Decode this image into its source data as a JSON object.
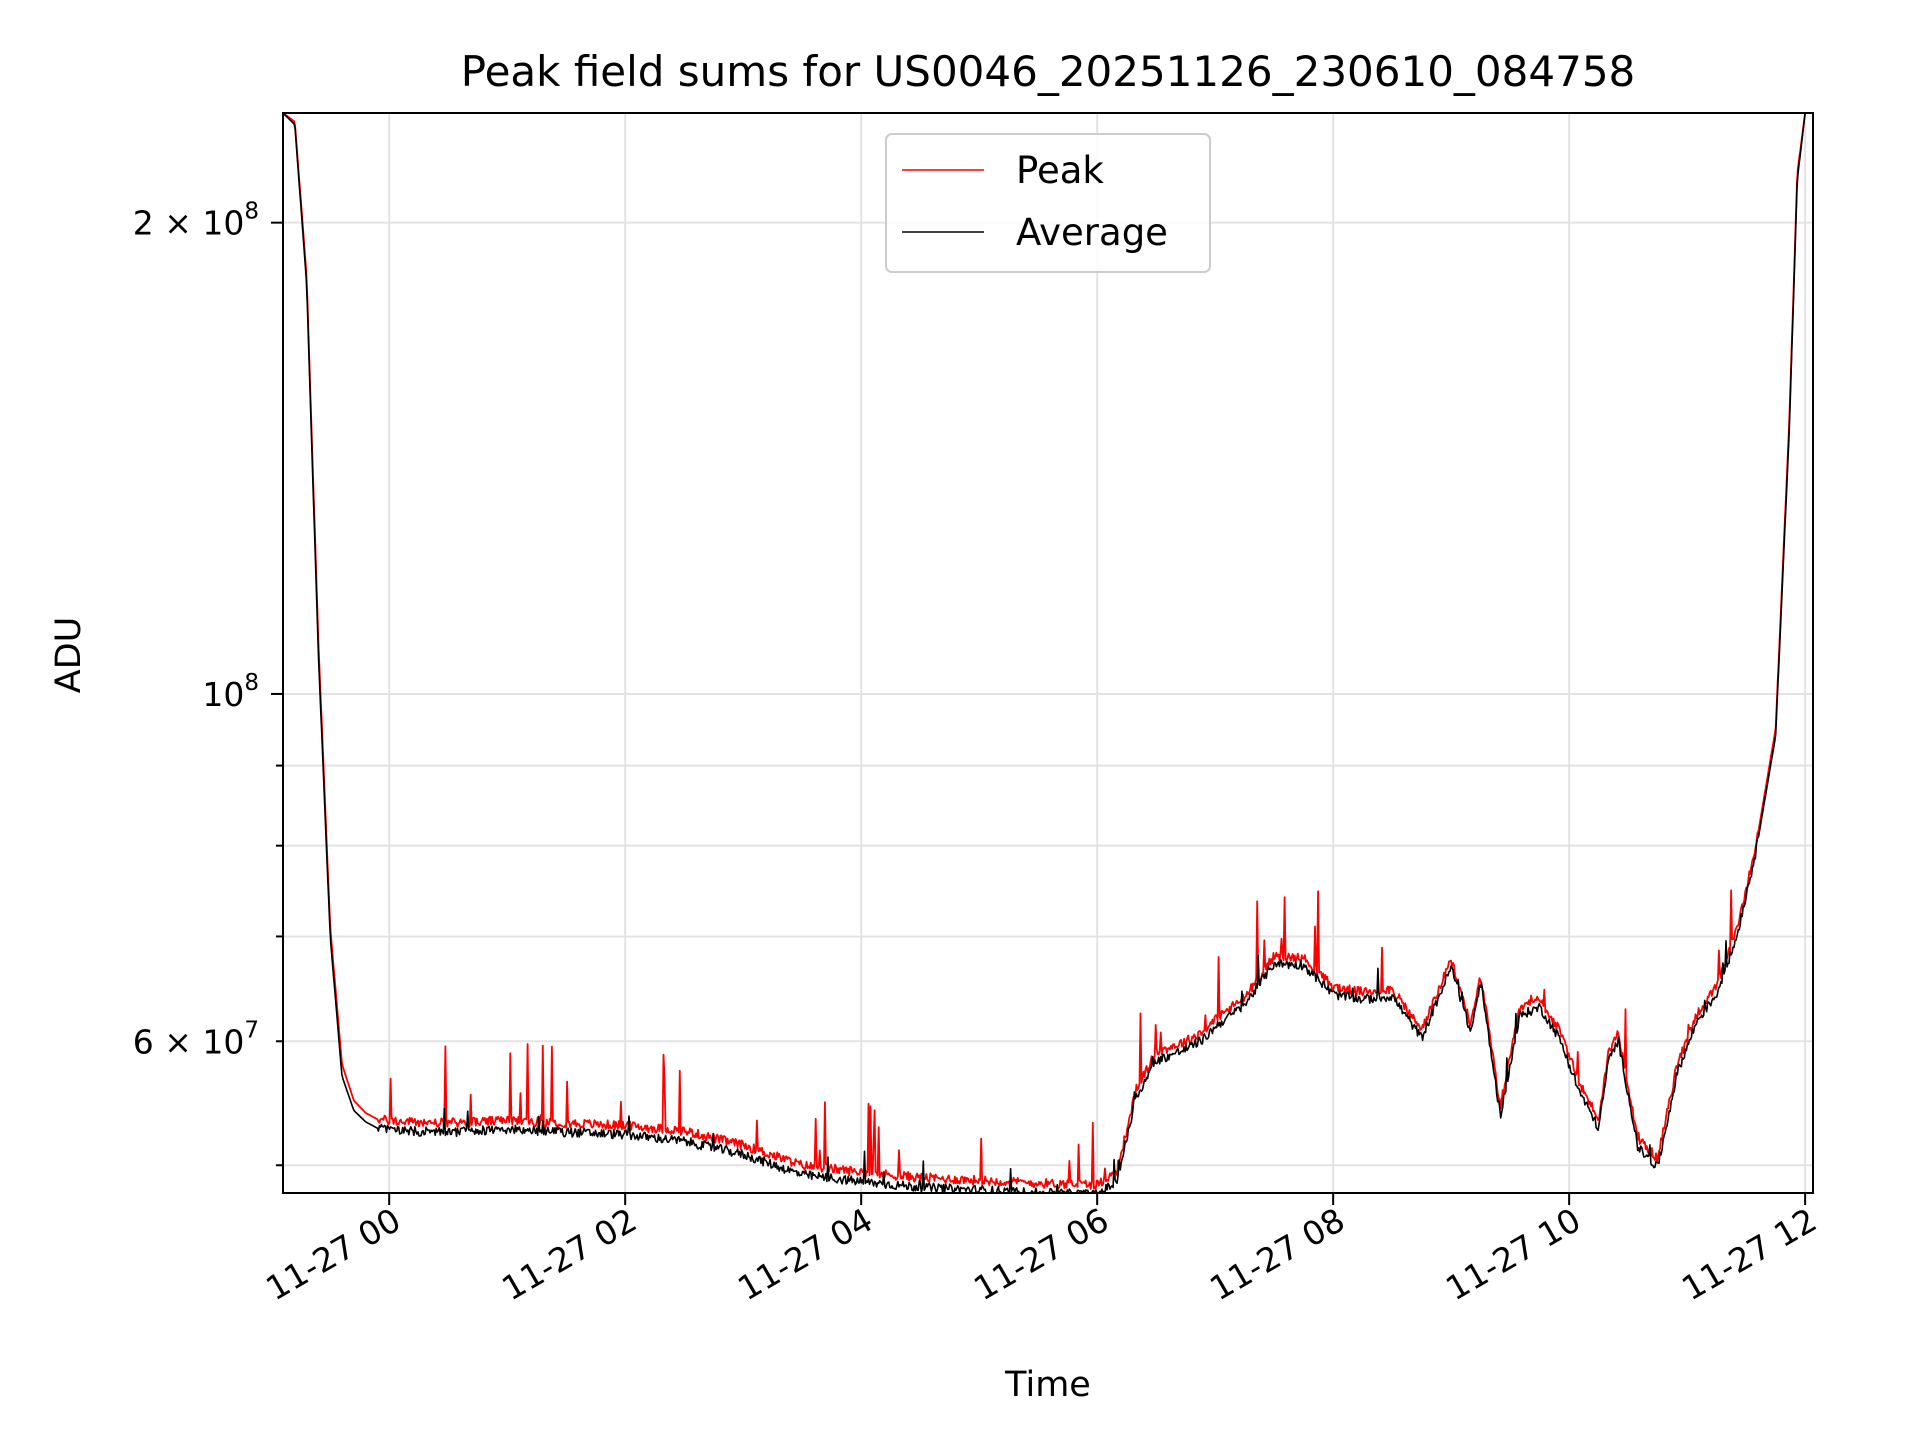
{
  "chart_data": {
    "type": "line",
    "title": "Peak field sums for US0046_20251126_230610_084758",
    "xlabel": "Time",
    "ylabel": "ADU",
    "x_scale": "time",
    "y_scale": "log",
    "xlim": [
      "2025-11-26 23:06",
      "2025-11-27 12:04"
    ],
    "ylim": [
      48000000,
      235000000
    ],
    "grid": true,
    "legend": "top-center",
    "x_ticks": [
      {
        "value": "2025-11-27 00:00",
        "label": "11-27 00"
      },
      {
        "value": "2025-11-27 02:00",
        "label": "11-27 02"
      },
      {
        "value": "2025-11-27 04:00",
        "label": "11-27 04"
      },
      {
        "value": "2025-11-27 06:00",
        "label": "11-27 06"
      },
      {
        "value": "2025-11-27 08:00",
        "label": "11-27 08"
      },
      {
        "value": "2025-11-27 10:00",
        "label": "11-27 10"
      },
      {
        "value": "2025-11-27 12:00",
        "label": "11-27 12"
      }
    ],
    "y_major_ticks": [
      {
        "value": 100000000,
        "label": "10",
        "exp": "8"
      },
      {
        "value": 200000000,
        "label": "2 × 10",
        "exp": "8"
      }
    ],
    "y_minor_ticks": [
      {
        "value": 50000000,
        "label": ""
      },
      {
        "value": 60000000,
        "label": "6 × 10",
        "exp": "7"
      },
      {
        "value": 70000000,
        "label": ""
      },
      {
        "value": 80000000,
        "label": ""
      },
      {
        "value": 90000000,
        "label": ""
      }
    ],
    "series": [
      {
        "name": "Peak",
        "color": "#ff0000",
        "x": [
          "2025-11-26 23:06",
          "2025-11-26 23:12",
          "2025-11-26 23:18",
          "2025-11-26 23:24",
          "2025-11-26 23:30",
          "2025-11-26 23:36",
          "2025-11-26 23:42",
          "2025-11-26 23:48",
          "2025-11-26 23:54",
          "2025-11-27 00:06",
          "2025-11-27 00:30",
          "2025-11-27 01:00",
          "2025-11-27 01:30",
          "2025-11-27 02:00",
          "2025-11-27 02:30",
          "2025-11-27 03:00",
          "2025-11-27 03:30",
          "2025-11-27 04:00",
          "2025-11-27 04:30",
          "2025-11-27 05:00",
          "2025-11-27 05:30",
          "2025-11-27 06:00",
          "2025-11-27 06:10",
          "2025-11-27 06:20",
          "2025-11-27 06:30",
          "2025-11-27 06:45",
          "2025-11-27 06:55",
          "2025-11-27 07:00",
          "2025-11-27 07:15",
          "2025-11-27 07:30",
          "2025-11-27 07:45",
          "2025-11-27 08:00",
          "2025-11-27 08:15",
          "2025-11-27 08:30",
          "2025-11-27 08:45",
          "2025-11-27 09:00",
          "2025-11-27 09:10",
          "2025-11-27 09:15",
          "2025-11-27 09:25",
          "2025-11-27 09:35",
          "2025-11-27 09:45",
          "2025-11-27 09:55",
          "2025-11-27 10:05",
          "2025-11-27 10:15",
          "2025-11-27 10:20",
          "2025-11-27 10:25",
          "2025-11-27 10:35",
          "2025-11-27 10:45",
          "2025-11-27 10:55",
          "2025-11-27 11:05",
          "2025-11-27 11:15",
          "2025-11-27 11:25",
          "2025-11-27 11:35",
          "2025-11-27 11:45",
          "2025-11-27 11:52",
          "2025-11-27 11:56",
          "2025-11-27 12:00"
        ],
        "values": [
          235000000,
          232000000,
          185000000,
          108000000,
          71000000,
          58000000,
          55000000,
          54000000,
          53500000,
          53300000,
          53200000,
          53400000,
          53200000,
          53000000,
          52600000,
          51500000,
          50000000,
          49500000,
          49100000,
          48900000,
          48700000,
          48600000,
          49500000,
          56000000,
          59000000,
          60000000,
          61000000,
          62000000,
          64000000,
          68000000,
          67800000,
          65000000,
          64500000,
          64800000,
          61000000,
          67600000,
          61500000,
          66200000,
          54500000,
          63000000,
          63800000,
          61000000,
          56500000,
          53500000,
          59000000,
          60800000,
          52000000,
          50500000,
          58000000,
          62500000,
          65000000,
          70500000,
          80000000,
          95000000,
          150000000,
          215000000,
          235000000
        ]
      },
      {
        "name": "Average",
        "color": "#000000",
        "x": [
          "2025-11-26 23:06",
          "2025-11-26 23:12",
          "2025-11-26 23:18",
          "2025-11-26 23:24",
          "2025-11-26 23:30",
          "2025-11-26 23:36",
          "2025-11-26 23:42",
          "2025-11-26 23:48",
          "2025-11-26 23:54",
          "2025-11-27 00:06",
          "2025-11-27 00:30",
          "2025-11-27 01:00",
          "2025-11-27 01:30",
          "2025-11-27 02:00",
          "2025-11-27 02:30",
          "2025-11-27 03:00",
          "2025-11-27 03:30",
          "2025-11-27 04:00",
          "2025-11-27 04:30",
          "2025-11-27 05:00",
          "2025-11-27 05:30",
          "2025-11-27 06:00",
          "2025-11-27 06:10",
          "2025-11-27 06:20",
          "2025-11-27 06:30",
          "2025-11-27 06:45",
          "2025-11-27 06:55",
          "2025-11-27 07:00",
          "2025-11-27 07:15",
          "2025-11-27 07:30",
          "2025-11-27 07:45",
          "2025-11-27 08:00",
          "2025-11-27 08:15",
          "2025-11-27 08:30",
          "2025-11-27 08:45",
          "2025-11-27 09:00",
          "2025-11-27 09:10",
          "2025-11-27 09:15",
          "2025-11-27 09:25",
          "2025-11-27 09:35",
          "2025-11-27 09:45",
          "2025-11-27 09:55",
          "2025-11-27 10:05",
          "2025-11-27 10:15",
          "2025-11-27 10:20",
          "2025-11-27 10:25",
          "2025-11-27 10:35",
          "2025-11-27 10:45",
          "2025-11-27 10:55",
          "2025-11-27 11:05",
          "2025-11-27 11:15",
          "2025-11-27 11:25",
          "2025-11-27 11:35",
          "2025-11-27 11:45",
          "2025-11-27 11:52",
          "2025-11-27 11:56",
          "2025-11-27 12:00"
        ],
        "values": [
          235000000,
          231000000,
          183000000,
          106000000,
          70000000,
          57000000,
          54200000,
          53300000,
          52800000,
          52600000,
          52500000,
          52700000,
          52500000,
          52300000,
          51800000,
          50800000,
          49300000,
          48800000,
          48400000,
          48200000,
          48000000,
          47900000,
          48800000,
          55300000,
          58300000,
          59300000,
          60300000,
          61300000,
          63300000,
          67300000,
          67100000,
          64300000,
          63800000,
          64100000,
          60300000,
          66900000,
          60800000,
          65500000,
          53800000,
          62300000,
          63100000,
          60300000,
          55800000,
          52800000,
          58300000,
          60100000,
          51300000,
          49800000,
          57300000,
          61800000,
          64300000,
          69800000,
          79300000,
          94000000,
          148000000,
          213000000,
          235000000
        ]
      }
    ]
  }
}
